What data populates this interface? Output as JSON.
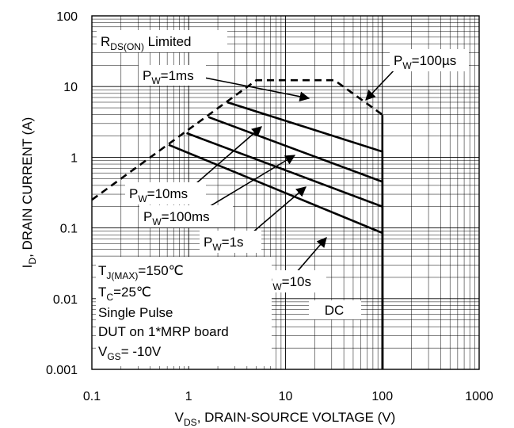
{
  "chart_data": {
    "type": "line",
    "xlabel": {
      "main": "V",
      "sub": "DS",
      "rest": ", DRAIN-SOURCE VOLTAGE (V)"
    },
    "ylabel": {
      "main": "I",
      "sub": "D",
      "rest": ", DRAIN CURRENT (A)"
    },
    "x_scale": "log",
    "y_scale": "log",
    "xlim": [
      0.1,
      1000
    ],
    "ylim": [
      0.001,
      100
    ],
    "x_ticks": [
      "0.1",
      "1",
      "10",
      "100",
      "1000"
    ],
    "y_ticks": [
      "0.001",
      "0.01",
      "0.1",
      "1",
      "10",
      "100"
    ],
    "grid": true,
    "series": [
      {
        "name": "R_DS(ON) Limited",
        "style": "dashed",
        "points": [
          [
            0.1,
            0.25
          ],
          [
            5,
            12.3
          ],
          [
            32,
            12.3
          ],
          [
            100,
            4
          ]
        ]
      },
      {
        "name": "PW=100µs",
        "points": [
          [
            100,
            4
          ],
          [
            100,
            0.001
          ]
        ]
      },
      {
        "name": "PW=1ms",
        "points": [
          [
            2.5,
            6
          ],
          [
            100,
            1.2
          ],
          [
            100,
            0.001
          ]
        ]
      },
      {
        "name": "PW=10ms",
        "points": [
          [
            1.6,
            3.7
          ],
          [
            100,
            0.45
          ],
          [
            100,
            0.001
          ]
        ]
      },
      {
        "name": "PW=100ms",
        "points": [
          [
            0.95,
            2.2
          ],
          [
            100,
            0.2
          ],
          [
            100,
            0.001
          ]
        ]
      },
      {
        "name": "PW=1s",
        "points": [
          [
            0.62,
            1.5
          ],
          [
            100,
            0.085
          ],
          [
            100,
            0.001
          ]
        ]
      },
      {
        "name": "PW=10s",
        "points": [
          [
            100,
            0.038
          ],
          [
            100,
            0.001
          ]
        ]
      },
      {
        "name": "DC",
        "points": [
          [
            100,
            0.011
          ],
          [
            100,
            0.001
          ]
        ]
      }
    ],
    "labels": {
      "rds": {
        "main": "R",
        "sub": "DS(ON)",
        "rest": " Limited"
      },
      "pw100us": {
        "main": "P",
        "sub": "W",
        "rest": "=100µs"
      },
      "pw1ms": {
        "main": "P",
        "sub": "W",
        "rest": "=1ms"
      },
      "pw10ms": {
        "main": "P",
        "sub": "W",
        "rest": "=10ms"
      },
      "pw100ms": {
        "main": "P",
        "sub": "W",
        "rest": "=100ms"
      },
      "pw1s": {
        "main": "P",
        "sub": "W",
        "rest": "=1s"
      },
      "pw10s": {
        "main": "P",
        "sub": "W",
        "rest": "=10s"
      },
      "dc": "DC"
    },
    "conditions": [
      {
        "main": "T",
        "sub": "J(MAX)",
        "rest": "=150℃"
      },
      {
        "main": "T",
        "sub": "C",
        "rest": "=25℃"
      },
      {
        "main": "Single Pulse",
        "sub": "",
        "rest": ""
      },
      {
        "main": "DUT on 1*MRP board",
        "sub": "",
        "rest": ""
      },
      {
        "main": "V",
        "sub": "GS",
        "rest": "= -10V"
      }
    ]
  }
}
